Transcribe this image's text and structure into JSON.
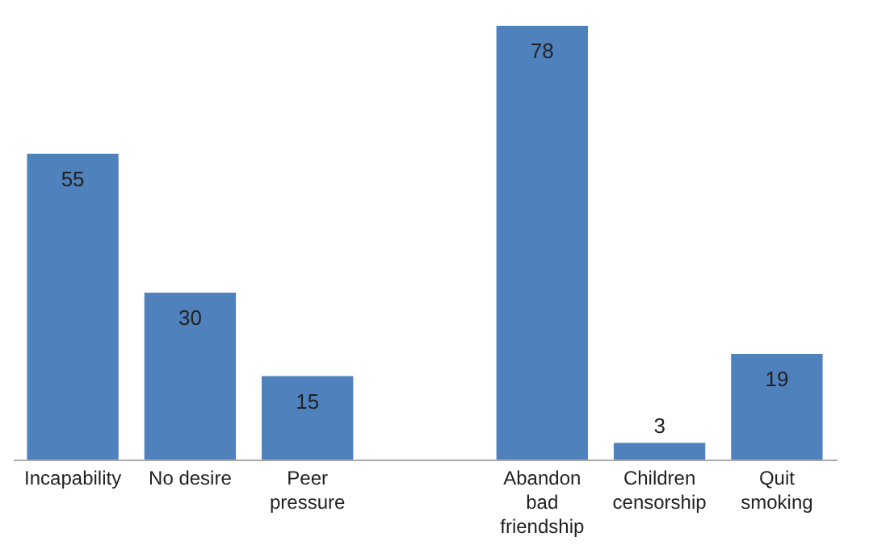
{
  "chart_data": {
    "type": "bar",
    "categories": [
      "Incapability",
      "No desire",
      "Peer\npressure",
      null,
      "Abandon\nbad\nfriendship",
      "Children\ncensorship",
      "Quit\nsmoking"
    ],
    "values": [
      55,
      30,
      15,
      null,
      78,
      3,
      19
    ],
    "color": "#4f81bd",
    "data_labels": true
  }
}
